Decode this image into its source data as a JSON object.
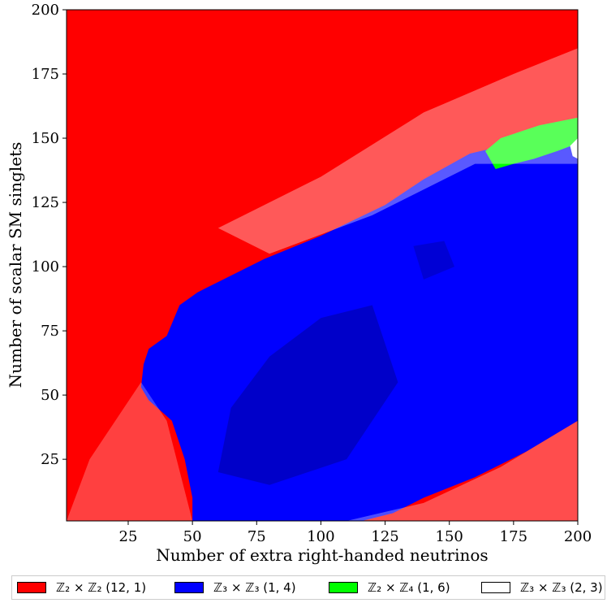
{
  "chart_data": {
    "type": "heatmap",
    "title": "",
    "xlabel": "Number of extra right-handed neutrinos",
    "ylabel": "Number of scalar SM singlets",
    "xlim": [
      1,
      200
    ],
    "ylim": [
      1,
      200
    ],
    "xticks": [
      25,
      50,
      75,
      100,
      125,
      150,
      175,
      200
    ],
    "yticks": [
      25,
      50,
      75,
      100,
      125,
      150,
      175,
      200
    ],
    "grid": false,
    "legend_position": "bottom",
    "categories": [
      {
        "label": "ℤ₂ × ℤ₂ (12, 1)",
        "color": "#ff0000"
      },
      {
        "label": "ℤ₃ × ℤ₃ (1, 4)",
        "color": "#0000ff"
      },
      {
        "label": "ℤ₂ × ℤ₄ (1, 6)",
        "color": "#00ff00"
      },
      {
        "label": "ℤ₃ × ℤ₃ (2, 3)",
        "color": "#ffffff"
      }
    ],
    "regions": [
      {
        "category": 0,
        "name": "red-region",
        "boundary": [
          [
            1,
            1
          ],
          [
            200,
            1
          ],
          [
            200,
            200
          ],
          [
            1,
            200
          ]
        ]
      },
      {
        "category": 1,
        "name": "blue-region",
        "boundary": [
          [
            50,
            1
          ],
          [
            50,
            10
          ],
          [
            47,
            25
          ],
          [
            42,
            40
          ],
          [
            33,
            48
          ],
          [
            30,
            53
          ],
          [
            31,
            62
          ],
          [
            33,
            68
          ],
          [
            40,
            73
          ],
          [
            45,
            85
          ],
          [
            52,
            90
          ],
          [
            62,
            95
          ],
          [
            78,
            103
          ],
          [
            100,
            112
          ],
          [
            125,
            124
          ],
          [
            140,
            134
          ],
          [
            158,
            144
          ],
          [
            175,
            148
          ],
          [
            190,
            154
          ],
          [
            200,
            156
          ],
          [
            200,
            40
          ],
          [
            180,
            28
          ],
          [
            160,
            18
          ],
          [
            140,
            10
          ],
          [
            128,
            4
          ],
          [
            116,
            1
          ]
        ]
      },
      {
        "category": 2,
        "name": "green-region",
        "boundary": [
          [
            164,
            145
          ],
          [
            170,
            150
          ],
          [
            185,
            155
          ],
          [
            200,
            158
          ],
          [
            200,
            148
          ],
          [
            192,
            145
          ],
          [
            183,
            142
          ],
          [
            175,
            140
          ],
          [
            168,
            138
          ]
        ]
      },
      {
        "category": 3,
        "name": "white-region",
        "boundary": [
          [
            197,
            147
          ],
          [
            200,
            150
          ],
          [
            200,
            142
          ],
          [
            198,
            143
          ]
        ]
      }
    ],
    "shading": [
      {
        "category": 0,
        "opacity": 0.35,
        "name": "light-red-band",
        "boundary": [
          [
            60,
            115
          ],
          [
            100,
            135
          ],
          [
            140,
            160
          ],
          [
            175,
            175
          ],
          [
            200,
            185
          ],
          [
            200,
            140
          ],
          [
            160,
            140
          ],
          [
            120,
            120
          ],
          [
            80,
            105
          ]
        ]
      },
      {
        "category": 0,
        "opacity": 0.3,
        "name": "light-red-lower-band",
        "boundary": [
          [
            110,
            1
          ],
          [
            200,
            1
          ],
          [
            200,
            40
          ],
          [
            170,
            22
          ],
          [
            140,
            8
          ]
        ]
      },
      {
        "category": 0,
        "opacity": 0.25,
        "name": "light-red-left-patch",
        "boundary": [
          [
            1,
            1
          ],
          [
            50,
            1
          ],
          [
            40,
            40
          ],
          [
            30,
            55
          ],
          [
            20,
            40
          ],
          [
            10,
            25
          ]
        ]
      },
      {
        "category": 1,
        "opacity": 0.45,
        "name": "dark-blue-core",
        "boundary": [
          [
            60,
            20
          ],
          [
            80,
            15
          ],
          [
            110,
            25
          ],
          [
            130,
            55
          ],
          [
            120,
            85
          ],
          [
            100,
            80
          ],
          [
            80,
            65
          ],
          [
            65,
            45
          ]
        ]
      },
      {
        "category": 1,
        "opacity": 0.35,
        "name": "dark-blue-upper-patch",
        "boundary": [
          [
            140,
            95
          ],
          [
            152,
            100
          ],
          [
            148,
            110
          ],
          [
            136,
            108
          ]
        ]
      }
    ]
  }
}
